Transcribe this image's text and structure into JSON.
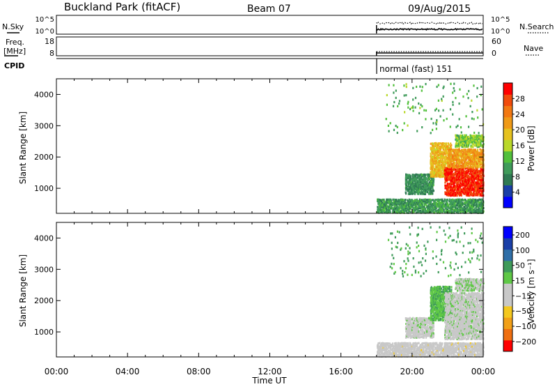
{
  "header": {
    "station": "Buckland Park (fitACF)",
    "beam": "Beam 07",
    "date": "09/Aug/2015"
  },
  "top_panel": {
    "nsky_label": "N.Sky",
    "nsearch_label": "N.Search",
    "left_ticks": [
      "10^5",
      "10^0"
    ],
    "right_ticks": [
      "10^5",
      "10^0"
    ],
    "freq_label_line1": "Freq.",
    "freq_label_line2": "[MHz]",
    "freq_ticks": [
      "18",
      "8"
    ],
    "nave_label": "Nave",
    "nave_ticks": [
      "60",
      "0"
    ],
    "cpid_label": "CPID",
    "cpid_value": "normal (fast) 151"
  },
  "colors": {
    "power_scale": [
      "#0000ff",
      "#1a3fa8",
      "#2f7a53",
      "#3f9b5a",
      "#52c03c",
      "#b9d82a",
      "#e6c21f",
      "#ef9a18",
      "#f27812",
      "#f14b0c",
      "#ff0000"
    ],
    "velocity_scale": [
      "#ff0000",
      "#ef6f10",
      "#f2a018",
      "#f4c81f",
      "#c8c8c8",
      "#c8c8c8",
      "#5fc846",
      "#3f9b5a",
      "#2f6fa8",
      "#1a3fa8",
      "#0000ff"
    ],
    "ground": "#ffd54f"
  },
  "chart_data": [
    {
      "type": "heatmap",
      "xlabel": "",
      "ylabel": "Slant Range [km]",
      "x_range_hours": [
        0,
        24
      ],
      "xticks": [
        "00:00",
        "04:00",
        "08:00",
        "12:00",
        "16:00",
        "20:00",
        "00:00"
      ],
      "ylim": [
        200,
        4500
      ],
      "yticks": [
        1000,
        2000,
        3000,
        4000
      ],
      "colorbar_label": "Power [dB]",
      "colorbar_ticks": [
        4,
        8,
        12,
        16,
        20,
        24,
        28
      ],
      "colorbar_range": [
        0,
        32
      ],
      "data_start_hour": 18,
      "regions": [
        {
          "t0": 18.0,
          "t1": 24.0,
          "r0": 250,
          "r1": 700,
          "value": 10
        },
        {
          "t0": 19.6,
          "t1": 21.2,
          "r0": 850,
          "r1": 1500,
          "value": 9
        },
        {
          "t0": 21.0,
          "t1": 22.2,
          "r0": 1400,
          "r1": 2500,
          "value": 20
        },
        {
          "t0": 21.8,
          "t1": 24.0,
          "r0": 800,
          "r1": 1700,
          "value": 29
        },
        {
          "t0": 22.0,
          "t1": 24.0,
          "r0": 1700,
          "r1": 2300,
          "value": 22
        },
        {
          "t0": 22.4,
          "t1": 24.0,
          "r0": 2350,
          "r1": 2750,
          "value": 14
        },
        {
          "t0": 18.5,
          "t1": 24.0,
          "r0": 2800,
          "r1": 4400,
          "value": 12
        }
      ]
    },
    {
      "type": "heatmap",
      "xlabel": "Time UT",
      "ylabel": "Slant Range [km]",
      "x_range_hours": [
        0,
        24
      ],
      "xticks": [
        "00:00",
        "04:00",
        "08:00",
        "12:00",
        "16:00",
        "20:00",
        "00:00"
      ],
      "ylim": [
        200,
        4500
      ],
      "yticks": [
        1000,
        2000,
        3000,
        4000
      ],
      "colorbar_label": "Velocity [m s⁻¹]",
      "colorbar_ticks": [
        200,
        100,
        50,
        15,
        -15,
        -50,
        -100,
        -200
      ],
      "colorbar_range": [
        -250,
        250
      ],
      "data_start_hour": 18,
      "regions": [
        {
          "t0": 18.0,
          "t1": 24.0,
          "r0": 250,
          "r1": 700,
          "value": -40
        },
        {
          "t0": 19.6,
          "t1": 21.2,
          "r0": 850,
          "r1": 1500,
          "value": 0
        },
        {
          "t0": 21.0,
          "t1": 22.2,
          "r0": 1400,
          "r1": 2500,
          "value": 60
        },
        {
          "t0": 21.8,
          "t1": 24.0,
          "r0": 800,
          "r1": 2300,
          "value": 0
        },
        {
          "t0": 22.4,
          "t1": 24.0,
          "r0": 2350,
          "r1": 2750,
          "value": 10
        },
        {
          "t0": 18.5,
          "t1": 24.0,
          "r0": 2800,
          "r1": 4400,
          "value": 80
        }
      ]
    }
  ]
}
